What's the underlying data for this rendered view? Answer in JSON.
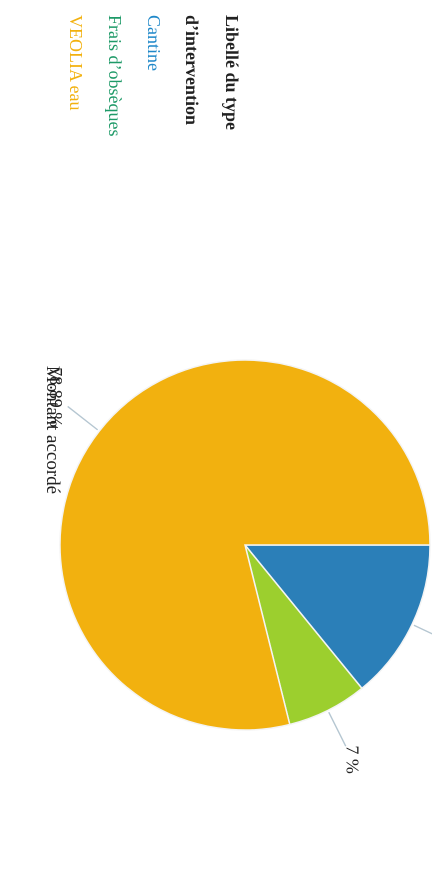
{
  "chart_data": {
    "type": "pie",
    "title": "Montant accordé",
    "legend": {
      "title_lines": [
        "Libellé du type",
        "d’intervention"
      ],
      "placement": "right",
      "entries": [
        "Cantine",
        "Frais d’obsèques",
        "VEOLIA eau"
      ]
    },
    "slices": [
      {
        "label": "Cantine",
        "value": 14.11,
        "display": "14.11 %",
        "color": "#2b7fb8"
      },
      {
        "label": "Frais d’obsèques",
        "value": 7,
        "display": "7 %",
        "color": "#9ccf2e"
      },
      {
        "label": "VEOLIA eau",
        "value": 78.89,
        "display": "78.89 %",
        "color": "#f2b10f"
      }
    ],
    "legend_colors": [
      "#1f88c9",
      "#1f9a68",
      "#f2b10f"
    ],
    "rotated": true
  }
}
